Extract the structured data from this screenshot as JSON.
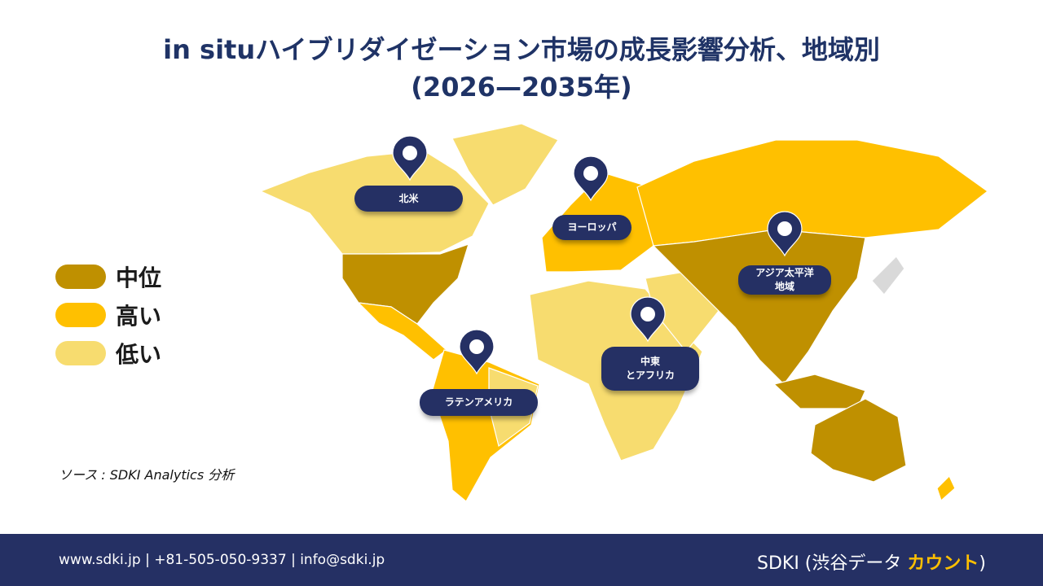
{
  "header": {
    "title_line1": "in situハイブリダイゼーション市場の成長影響分析、地域別",
    "title_line2": "(2026—2035年)"
  },
  "legend": [
    {
      "label": "中位",
      "color": "#BF9000"
    },
    {
      "label": "高い",
      "color": "#FFC000"
    },
    {
      "label": "低い",
      "color": "#F7DC6F"
    }
  ],
  "regions": [
    {
      "lines": [
        "北米"
      ]
    },
    {
      "lines": [
        "ヨーロッパ"
      ]
    },
    {
      "lines": [
        "アジア太平洋",
        "地域"
      ]
    },
    {
      "lines": [
        "中東",
        "とアフリカ"
      ]
    },
    {
      "lines": [
        "ラテンアメリカ"
      ]
    }
  ],
  "source": "ソース : SDKI Analytics 分析",
  "footer": {
    "contact": "www.sdki.jp | +81-505-050-9337 | info@sdki.jp",
    "brand": "SDKI (渋谷データ",
    "brand_accent": "カウント",
    "brand_end": ")"
  }
}
